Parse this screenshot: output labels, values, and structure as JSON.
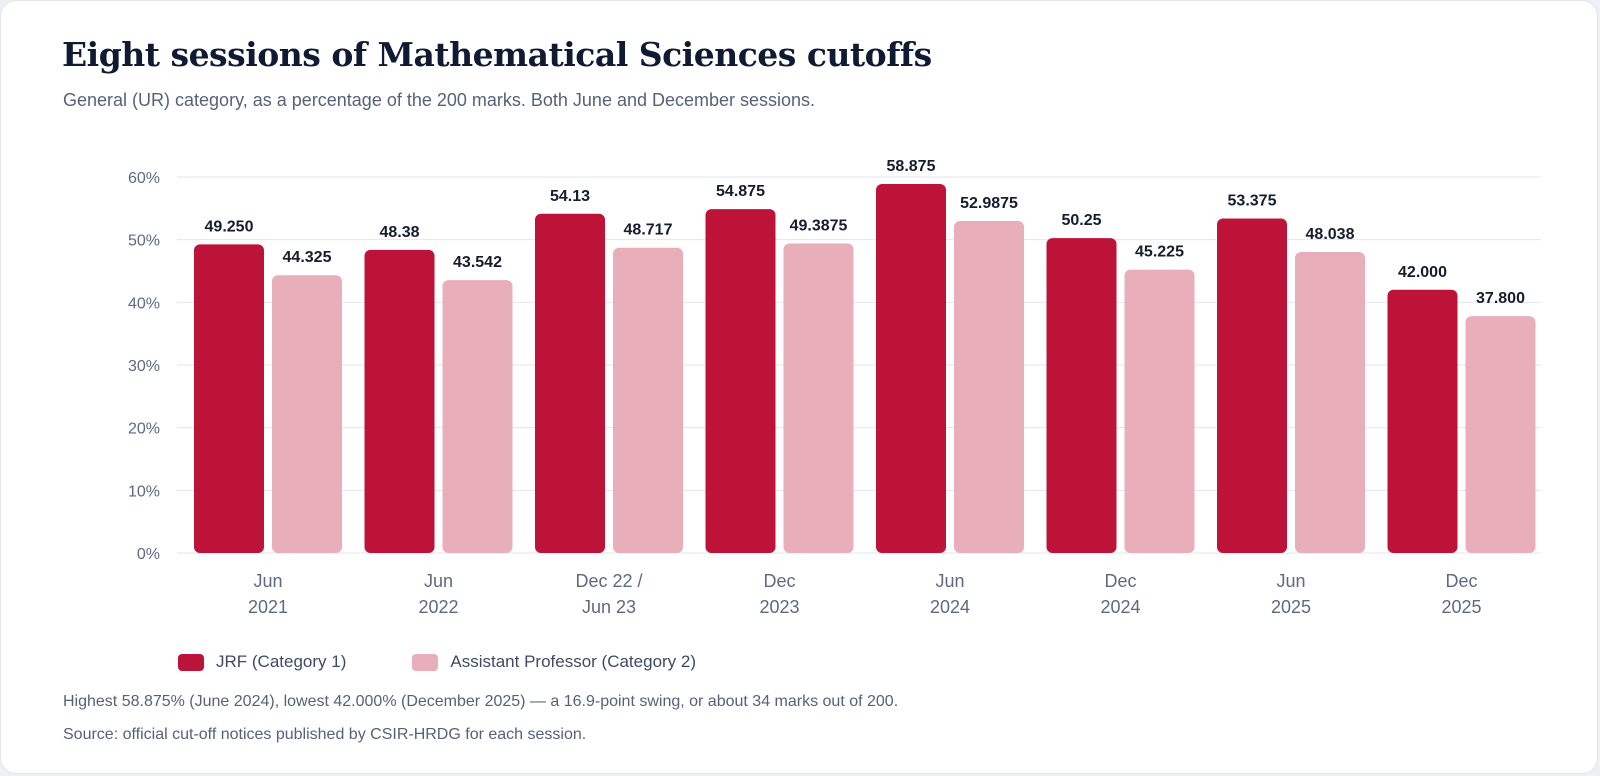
{
  "title": "Eight sessions of Mathematical Sciences cutoffs",
  "subtitle": "General (UR) category, as a percentage of the 200 marks. Both June and December sessions.",
  "colors": {
    "jrf": "#bd1338",
    "ap": "#e8afbb",
    "grid": "#e3e6ef",
    "axis_text": "#5d6a82",
    "value_text": "#151d2e"
  },
  "chart_data": {
    "type": "bar",
    "categories": [
      [
        "Jun",
        "2021"
      ],
      [
        "Jun",
        "2022"
      ],
      [
        "Dec 22 /",
        "Jun 23"
      ],
      [
        "Dec",
        "2023"
      ],
      [
        "Jun",
        "2024"
      ],
      [
        "Dec",
        "2024"
      ],
      [
        "Jun",
        "2025"
      ],
      [
        "Dec",
        "2025"
      ]
    ],
    "series": [
      {
        "name": "JRF (Category 1)",
        "color": "#bd1338",
        "values": [
          49.25,
          48.38,
          54.13,
          54.875,
          58.875,
          50.25,
          53.375,
          42.0
        ],
        "labels": [
          "49.250",
          "48.38",
          "54.13",
          "54.875",
          "58.875",
          "50.25",
          "53.375",
          "42.000"
        ]
      },
      {
        "name": "Assistant Professor (Category 2)",
        "color": "#e8afbb",
        "values": [
          44.325,
          43.542,
          48.717,
          49.3875,
          52.9875,
          45.225,
          48.038,
          37.8
        ],
        "labels": [
          "44.325",
          "43.542",
          "48.717",
          "49.3875",
          "52.9875",
          "45.225",
          "48.038",
          "37.800"
        ]
      }
    ],
    "yticks": [
      0,
      10,
      20,
      30,
      40,
      50,
      60
    ],
    "ytick_labels": [
      "0%",
      "10%",
      "20%",
      "30%",
      "40%",
      "50%",
      "60%"
    ],
    "ylim": [
      0,
      60
    ],
    "grid": true,
    "legend_position": "bottom-left"
  },
  "legend": {
    "jrf_label": "JRF (Category 1)",
    "ap_label": "Assistant Professor (Category 2)"
  },
  "notes": {
    "summary": "Highest 58.875% (June 2024), lowest 42.000% (December 2025) — a 16.9-point swing, or about 34 marks out of 200.",
    "source": "Source: official cut-off notices published by CSIR-HRDG for each session."
  }
}
